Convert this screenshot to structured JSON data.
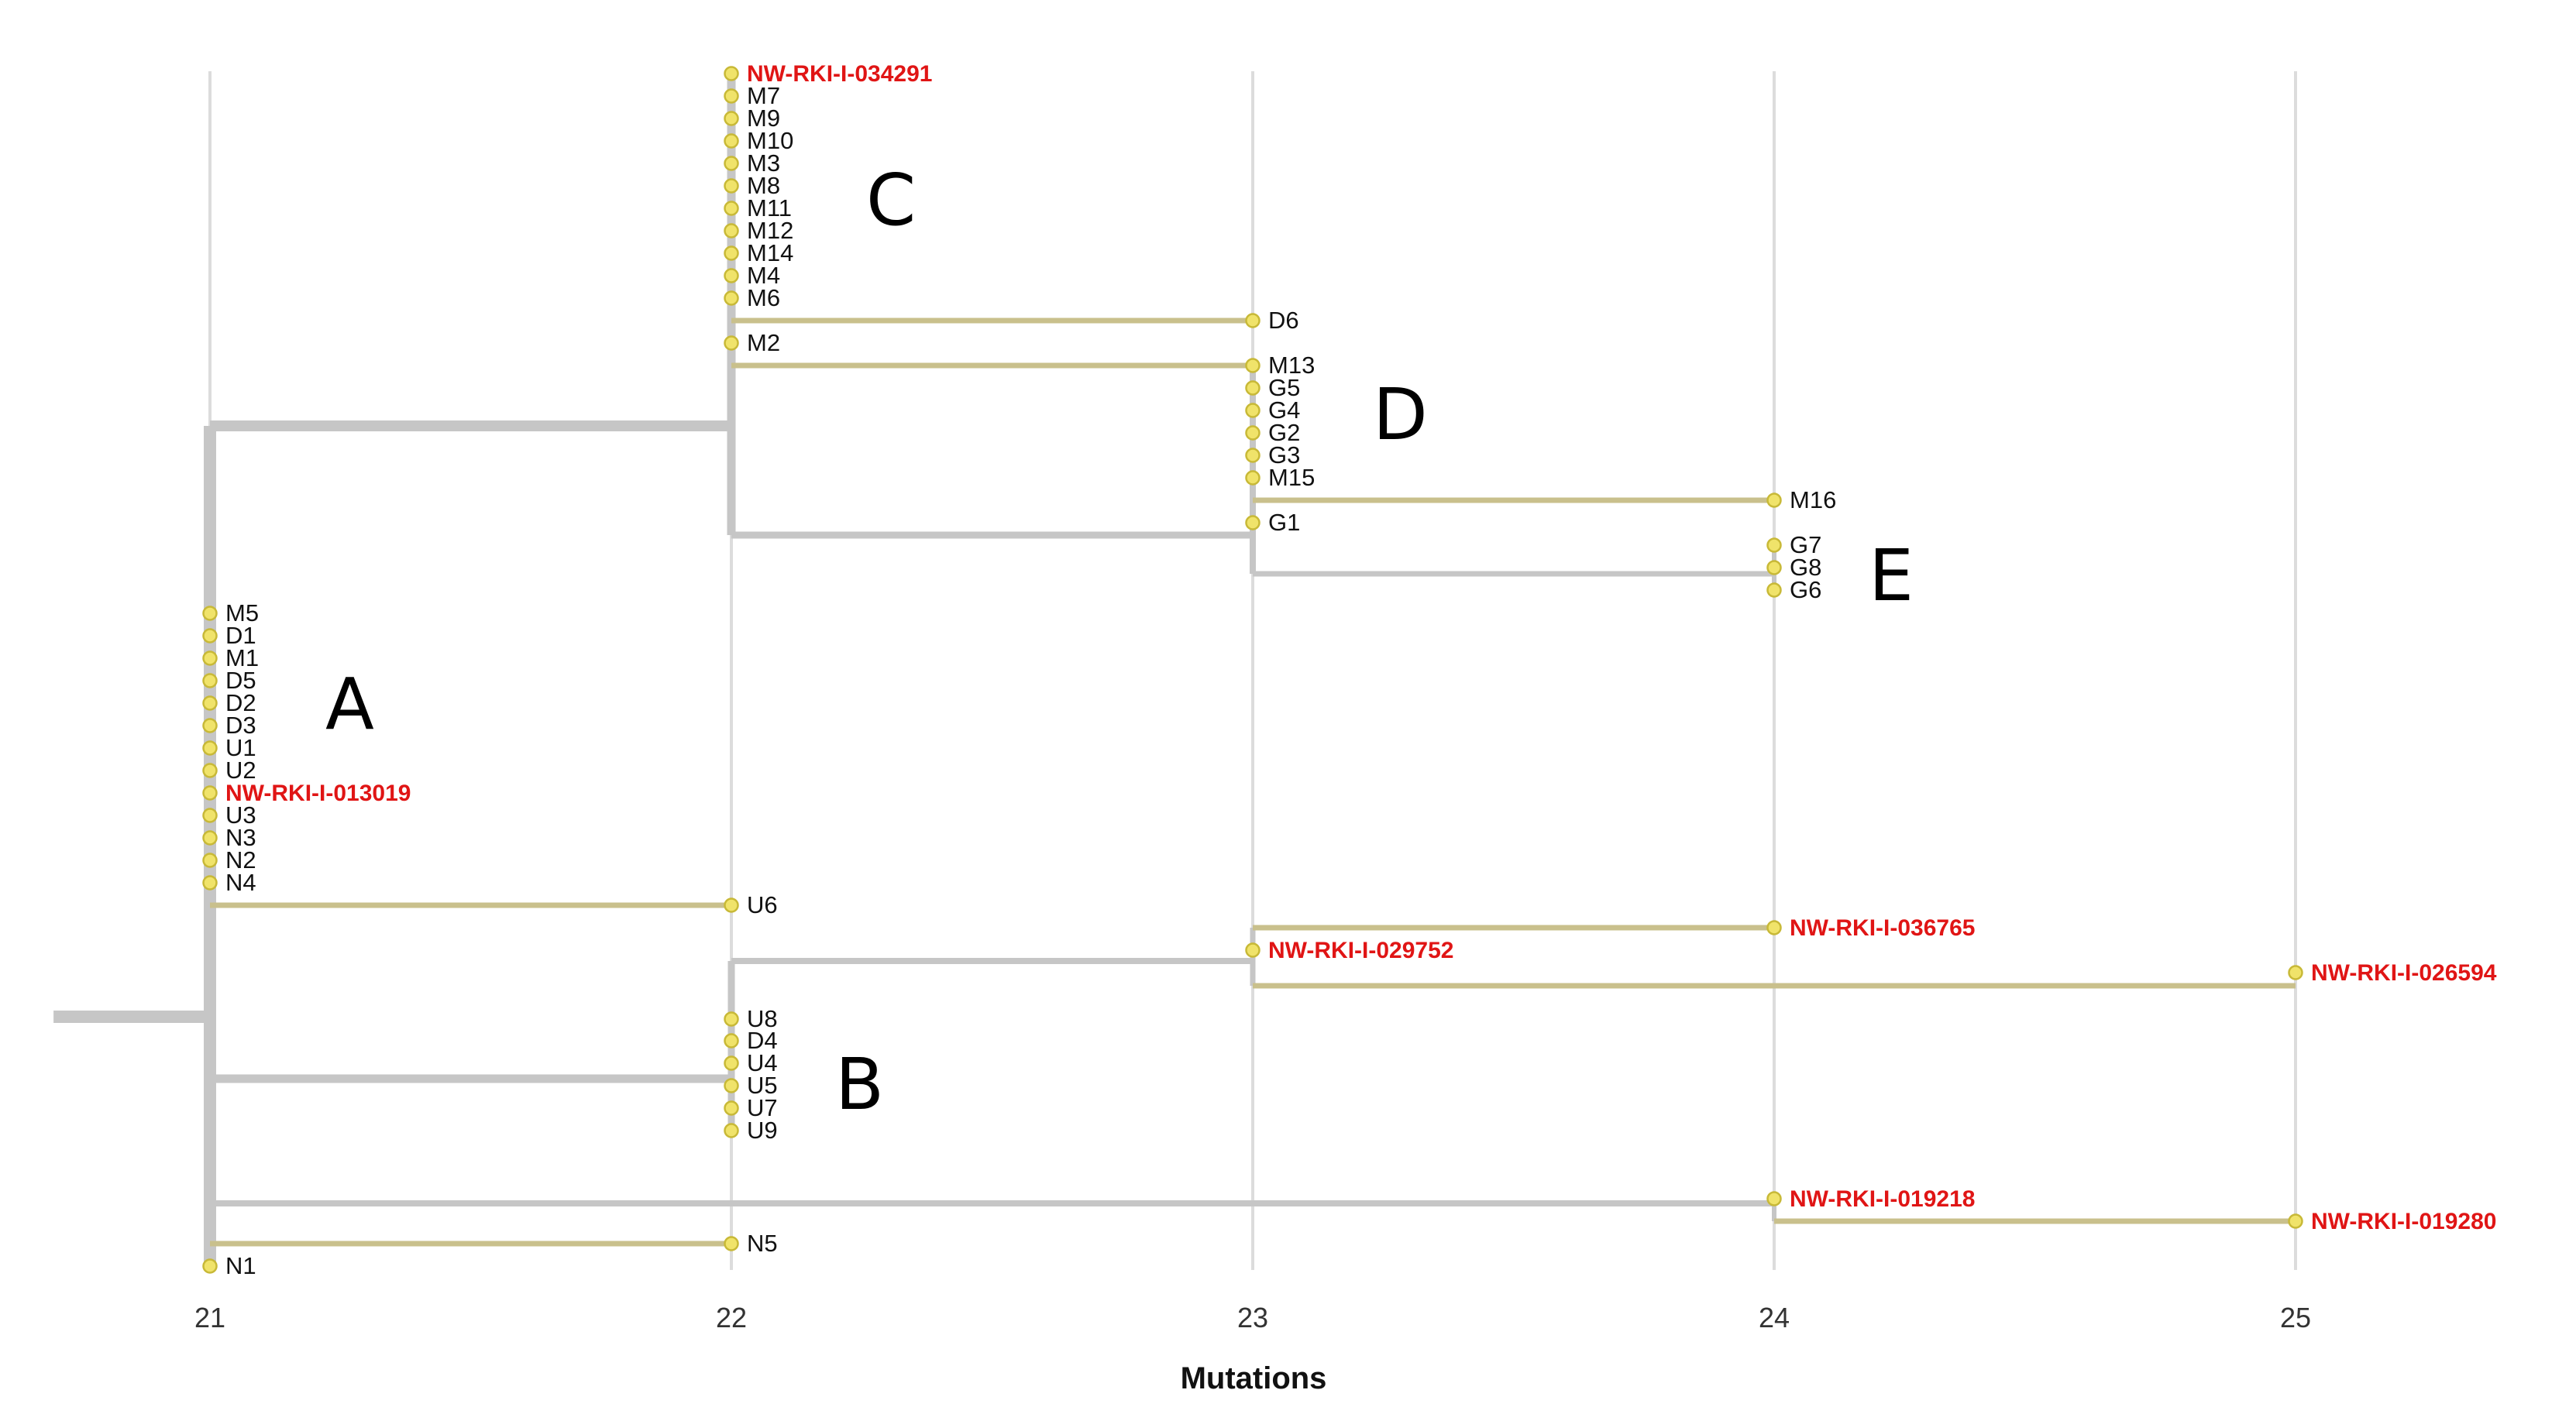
{
  "chart_data": {
    "type": "phylogenetic-tree",
    "xlabel": "Mutations",
    "xlim": [
      20.7,
      25.5
    ],
    "x_ticks": [
      21,
      22,
      23,
      24,
      25
    ],
    "colors": {
      "internal_branch": "#c6c6c6",
      "tip_branch": "#c9c08c",
      "tip_dot_fill": "#f0e36a",
      "tip_dot_stroke": "#c8b937",
      "highlight_label": "#e01515",
      "gridline": "#dcdcdc"
    },
    "tips": [
      {
        "label": "NW-RKI-I-034291",
        "x": 22,
        "highlight": true
      },
      {
        "label": "M7",
        "x": 22
      },
      {
        "label": "M9",
        "x": 22
      },
      {
        "label": "M10",
        "x": 22
      },
      {
        "label": "M3",
        "x": 22
      },
      {
        "label": "M8",
        "x": 22
      },
      {
        "label": "M11",
        "x": 22
      },
      {
        "label": "M12",
        "x": 22
      },
      {
        "label": "M14",
        "x": 22
      },
      {
        "label": "M4",
        "x": 22
      },
      {
        "label": "M6",
        "x": 22
      },
      {
        "label": "D6",
        "x": 23
      },
      {
        "label": "M2",
        "x": 22
      },
      {
        "label": "M13",
        "x": 23
      },
      {
        "label": "G5",
        "x": 23
      },
      {
        "label": "G4",
        "x": 23
      },
      {
        "label": "G2",
        "x": 23
      },
      {
        "label": "G3",
        "x": 23
      },
      {
        "label": "M15",
        "x": 23
      },
      {
        "label": "M16",
        "x": 24
      },
      {
        "label": "G1",
        "x": 23
      },
      {
        "label": "G7",
        "x": 24
      },
      {
        "label": "G8",
        "x": 24
      },
      {
        "label": "G6",
        "x": 24
      },
      {
        "label": "M5",
        "x": 21
      },
      {
        "label": "D1",
        "x": 21
      },
      {
        "label": "M1",
        "x": 21
      },
      {
        "label": "D5",
        "x": 21
      },
      {
        "label": "D2",
        "x": 21
      },
      {
        "label": "D3",
        "x": 21
      },
      {
        "label": "U1",
        "x": 21
      },
      {
        "label": "U2",
        "x": 21
      },
      {
        "label": "NW-RKI-I-013019",
        "x": 21,
        "highlight": true
      },
      {
        "label": "U3",
        "x": 21
      },
      {
        "label": "N3",
        "x": 21
      },
      {
        "label": "N2",
        "x": 21
      },
      {
        "label": "N4",
        "x": 21
      },
      {
        "label": "U6",
        "x": 22
      },
      {
        "label": "NW-RKI-I-036765",
        "x": 24,
        "highlight": true
      },
      {
        "label": "NW-RKI-I-029752",
        "x": 23,
        "highlight": true
      },
      {
        "label": "NW-RKI-I-026594",
        "x": 25,
        "highlight": true
      },
      {
        "label": "U8",
        "x": 22
      },
      {
        "label": "D4",
        "x": 22
      },
      {
        "label": "U4",
        "x": 22
      },
      {
        "label": "U5",
        "x": 22
      },
      {
        "label": "U7",
        "x": 22
      },
      {
        "label": "U9",
        "x": 22
      },
      {
        "label": "NW-RKI-I-019218",
        "x": 24,
        "highlight": true
      },
      {
        "label": "NW-RKI-I-019280",
        "x": 25,
        "highlight": true
      },
      {
        "label": "N5",
        "x": 22
      },
      {
        "label": "N1",
        "x": 21
      }
    ],
    "clades": [
      {
        "label": "A"
      },
      {
        "label": "B"
      },
      {
        "label": "C"
      },
      {
        "label": "D"
      },
      {
        "label": "E"
      }
    ]
  }
}
